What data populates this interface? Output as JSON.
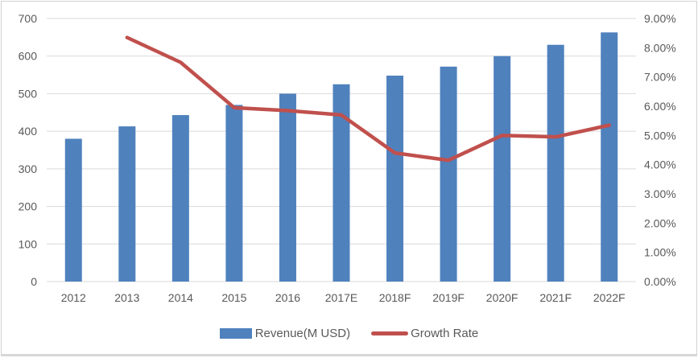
{
  "chart_data": {
    "type": "combo (bar + line)",
    "title": "",
    "categories": [
      "2012",
      "2013",
      "2014",
      "2015",
      "2016",
      "2017E",
      "2018F",
      "2019F",
      "2020F",
      "2021F",
      "2022F"
    ],
    "series": [
      {
        "name": "Revenue(M USD)",
        "type": "bar",
        "axis": "left",
        "color": "#4F81BD",
        "values": [
          380,
          413,
          443,
          470,
          500,
          525,
          548,
          572,
          600,
          630,
          663
        ]
      },
      {
        "name": "Growth Rate",
        "type": "line",
        "axis": "right",
        "color": "#C0504D",
        "values": [
          null,
          8.35,
          7.5,
          5.95,
          5.85,
          5.7,
          4.4,
          4.15,
          5.0,
          4.95,
          5.35
        ]
      }
    ],
    "left_axis": {
      "min": 0,
      "max": 700,
      "step": 100,
      "tick_labels": [
        "0",
        "100",
        "200",
        "300",
        "400",
        "500",
        "600",
        "700"
      ]
    },
    "right_axis": {
      "min": 0,
      "max": 9,
      "step": 1,
      "tick_labels": [
        "0.00%",
        "1.00%",
        "2.00%",
        "3.00%",
        "4.00%",
        "5.00%",
        "6.00%",
        "7.00%",
        "8.00%",
        "9.00%"
      ]
    },
    "grid": true,
    "legend_position": "bottom",
    "colors": {
      "bar": "#4F81BD",
      "line": "#C0504D",
      "gridline": "#D9D9D9",
      "tick_text": "#595959",
      "background": "#FFFFFF",
      "frame_border": "#D2D2D2"
    }
  },
  "legend": {
    "revenue_label": "Revenue(M USD)",
    "growth_label": "Growth Rate"
  }
}
